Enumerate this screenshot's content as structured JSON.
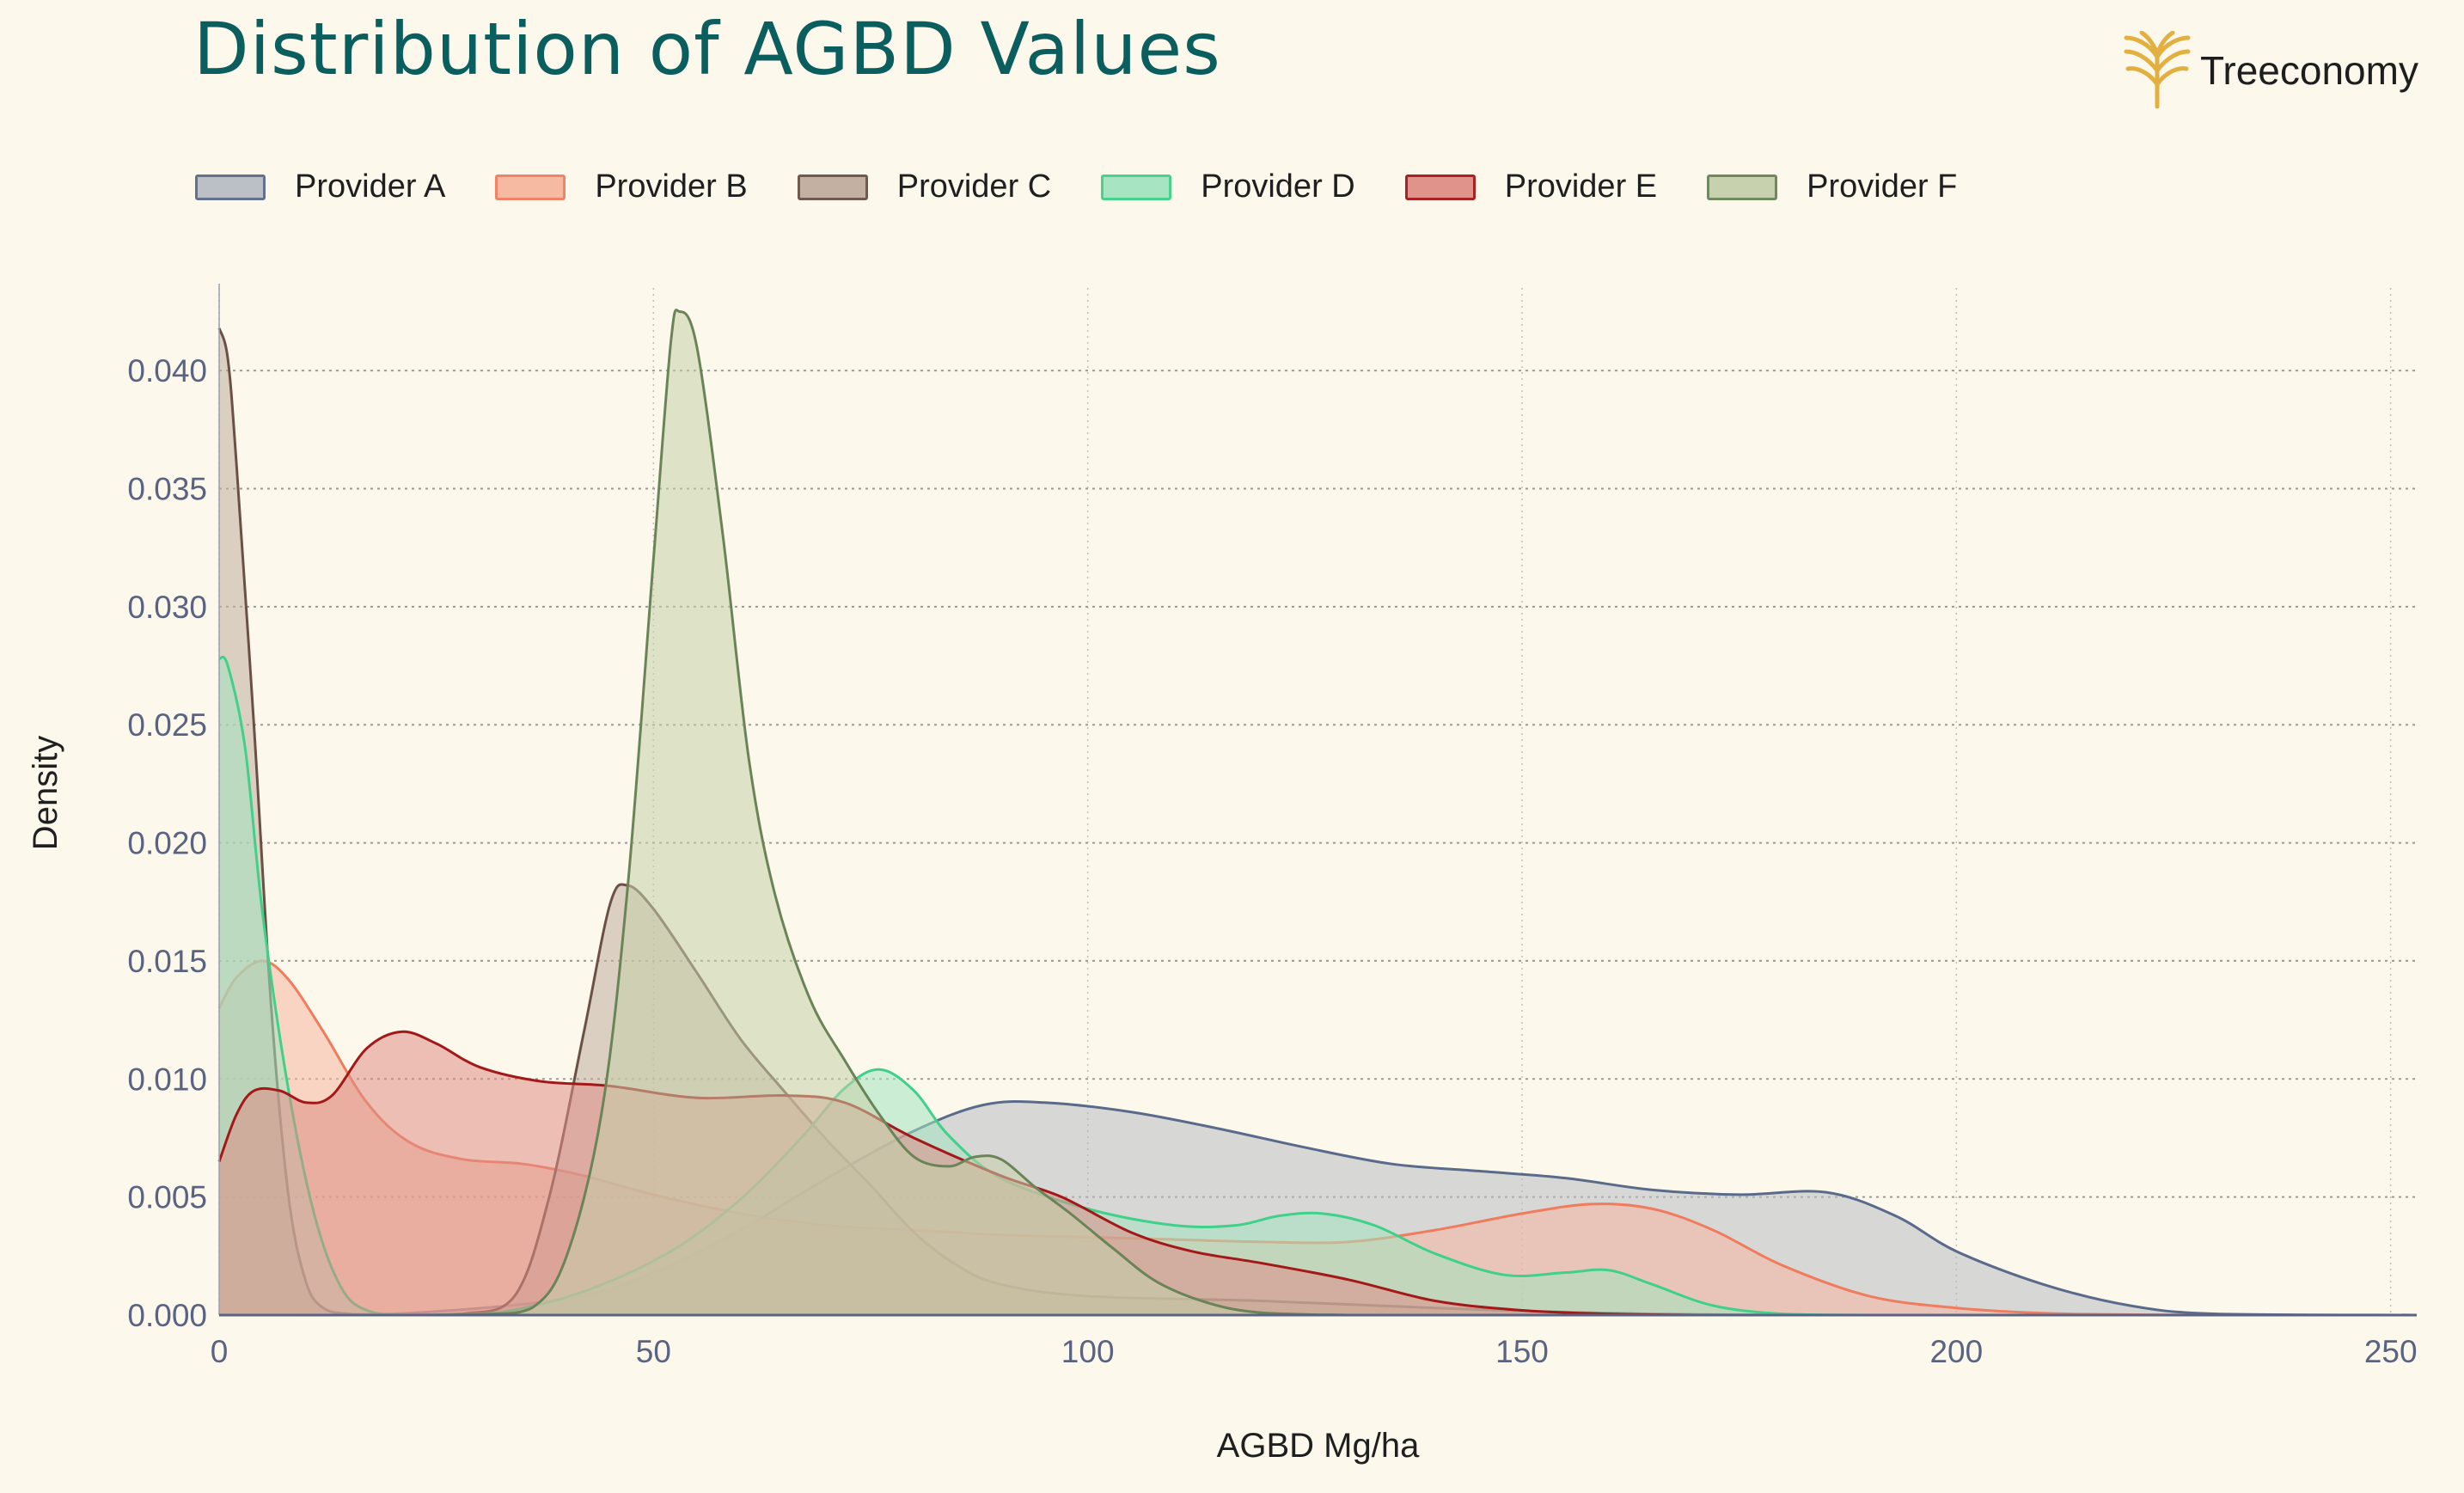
{
  "chart_data": {
    "type": "area",
    "title": "Distribution of AGBD Values",
    "xlabel": "AGBD Mg/ha",
    "ylabel": "Density",
    "xlim": [
      0,
      253
    ],
    "ylim": [
      0,
      0.0435
    ],
    "x_ticks": [
      0,
      50,
      100,
      150,
      200,
      250
    ],
    "y_ticks": [
      0.0,
      0.005,
      0.01,
      0.015,
      0.02,
      0.025,
      0.03,
      0.035,
      0.04
    ],
    "y_tick_labels": [
      "0.000",
      "0.005",
      "0.010",
      "0.015",
      "0.020",
      "0.025",
      "0.030",
      "0.035",
      "0.040"
    ],
    "grid": true,
    "legend_position": "top",
    "series": [
      {
        "name": "Provider A",
        "line_color": "#5a6a8a",
        "fill_color": "#b8bcc4",
        "points": [
          [
            0,
            0
          ],
          [
            20,
            5e-05
          ],
          [
            40,
            0.0007
          ],
          [
            50,
            0.0018
          ],
          [
            60,
            0.0036
          ],
          [
            70,
            0.0058
          ],
          [
            80,
            0.0078
          ],
          [
            88,
            0.0089
          ],
          [
            95,
            0.009
          ],
          [
            105,
            0.0086
          ],
          [
            115,
            0.0079
          ],
          [
            125,
            0.0071
          ],
          [
            135,
            0.0064
          ],
          [
            145,
            0.0061
          ],
          [
            155,
            0.0058
          ],
          [
            165,
            0.0053
          ],
          [
            175,
            0.0051
          ],
          [
            185,
            0.0052
          ],
          [
            193,
            0.0042
          ],
          [
            200,
            0.0027
          ],
          [
            210,
            0.0013
          ],
          [
            220,
            0.0004
          ],
          [
            230,
            5e-05
          ],
          [
            253,
            0
          ]
        ]
      },
      {
        "name": "Provider B",
        "line_color": "#f07c5e",
        "fill_color": "#f6b7a0",
        "points": [
          [
            0,
            0.013
          ],
          [
            2,
            0.0143
          ],
          [
            5,
            0.015
          ],
          [
            8,
            0.0142
          ],
          [
            12,
            0.012
          ],
          [
            17,
            0.009
          ],
          [
            22,
            0.0073
          ],
          [
            28,
            0.0066
          ],
          [
            35,
            0.0064
          ],
          [
            42,
            0.0059
          ],
          [
            50,
            0.0051
          ],
          [
            60,
            0.0043
          ],
          [
            70,
            0.0038
          ],
          [
            80,
            0.0036
          ],
          [
            90,
            0.0034
          ],
          [
            100,
            0.0033
          ],
          [
            110,
            0.0032
          ],
          [
            120,
            0.0031
          ],
          [
            130,
            0.0031
          ],
          [
            140,
            0.0036
          ],
          [
            150,
            0.0043
          ],
          [
            158,
            0.0047
          ],
          [
            165,
            0.0045
          ],
          [
            172,
            0.0036
          ],
          [
            180,
            0.0021
          ],
          [
            190,
            0.0008
          ],
          [
            200,
            0.0003
          ],
          [
            210,
            8e-05
          ],
          [
            220,
            2e-05
          ],
          [
            230,
            0
          ]
        ]
      },
      {
        "name": "Provider C",
        "line_color": "#6b5145",
        "fill_color": "#c0ada0",
        "points": [
          [
            0,
            0.0418
          ],
          [
            1,
            0.0405
          ],
          [
            2,
            0.036
          ],
          [
            4,
            0.025
          ],
          [
            6,
            0.013
          ],
          [
            8,
            0.005
          ],
          [
            10,
            0.0014
          ],
          [
            12,
            0.0003
          ],
          [
            15,
            5e-05
          ],
          [
            20,
            0
          ],
          [
            28,
            5e-05
          ],
          [
            34,
            0.0008
          ],
          [
            38,
            0.005
          ],
          [
            42,
            0.012
          ],
          [
            45,
            0.0174
          ],
          [
            47,
            0.0182
          ],
          [
            50,
            0.0172
          ],
          [
            55,
            0.0145
          ],
          [
            60,
            0.0117
          ],
          [
            65,
            0.0095
          ],
          [
            70,
            0.0074
          ],
          [
            75,
            0.0055
          ],
          [
            80,
            0.0035
          ],
          [
            85,
            0.0021
          ],
          [
            90,
            0.0013
          ],
          [
            100,
            0.0008
          ],
          [
            120,
            0.0006
          ],
          [
            140,
            0.0003
          ],
          [
            160,
            8e-05
          ],
          [
            180,
            0
          ]
        ]
      },
      {
        "name": "Provider D",
        "line_color": "#3fd08a",
        "fill_color": "#a3e3c0",
        "points": [
          [
            0,
            0.0278
          ],
          [
            1,
            0.0275
          ],
          [
            3,
            0.024
          ],
          [
            5,
            0.017
          ],
          [
            8,
            0.0095
          ],
          [
            11,
            0.0042
          ],
          [
            14,
            0.0012
          ],
          [
            17,
            0.0002
          ],
          [
            22,
            0
          ],
          [
            32,
            0.0001
          ],
          [
            42,
            0.001
          ],
          [
            52,
            0.0027
          ],
          [
            60,
            0.0049
          ],
          [
            67,
            0.0075
          ],
          [
            72,
            0.0096
          ],
          [
            76,
            0.0104
          ],
          [
            80,
            0.0095
          ],
          [
            84,
            0.0076
          ],
          [
            90,
            0.0058
          ],
          [
            100,
            0.0045
          ],
          [
            110,
            0.0038
          ],
          [
            117,
            0.0038
          ],
          [
            122,
            0.0042
          ],
          [
            127,
            0.0043
          ],
          [
            133,
            0.0038
          ],
          [
            140,
            0.0026
          ],
          [
            148,
            0.0017
          ],
          [
            155,
            0.0018
          ],
          [
            160,
            0.0019
          ],
          [
            165,
            0.0013
          ],
          [
            172,
            0.0004
          ],
          [
            180,
            5e-05
          ],
          [
            190,
            0
          ]
        ]
      },
      {
        "name": "Provider E",
        "line_color": "#a31818",
        "fill_color": "#de8e86",
        "points": [
          [
            0,
            0.0065
          ],
          [
            2,
            0.0085
          ],
          [
            4,
            0.0095
          ],
          [
            7,
            0.0095
          ],
          [
            10,
            0.009
          ],
          [
            13,
            0.0093
          ],
          [
            17,
            0.0113
          ],
          [
            21,
            0.012
          ],
          [
            25,
            0.0115
          ],
          [
            30,
            0.0105
          ],
          [
            37,
            0.0099
          ],
          [
            45,
            0.0097
          ],
          [
            55,
            0.0092
          ],
          [
            65,
            0.0093
          ],
          [
            72,
            0.009
          ],
          [
            80,
            0.0075
          ],
          [
            90,
            0.0059
          ],
          [
            97,
            0.005
          ],
          [
            105,
            0.0035
          ],
          [
            112,
            0.0027
          ],
          [
            120,
            0.0022
          ],
          [
            130,
            0.0015
          ],
          [
            140,
            0.0006
          ],
          [
            150,
            0.0002
          ],
          [
            160,
            5e-05
          ],
          [
            170,
            0
          ]
        ]
      },
      {
        "name": "Provider F",
        "line_color": "#6a8458",
        "fill_color": "#c5cfaa",
        "points": [
          [
            0,
            0
          ],
          [
            20,
            0
          ],
          [
            30,
            3e-05
          ],
          [
            36,
            0.0003
          ],
          [
            40,
            0.0025
          ],
          [
            44,
            0.0085
          ],
          [
            47,
            0.018
          ],
          [
            50,
            0.032
          ],
          [
            52,
            0.0412
          ],
          [
            53,
            0.0425
          ],
          [
            55,
            0.041
          ],
          [
            58,
            0.033
          ],
          [
            61,
            0.0235
          ],
          [
            64,
            0.0178
          ],
          [
            68,
            0.0134
          ],
          [
            72,
            0.0108
          ],
          [
            76,
            0.0085
          ],
          [
            80,
            0.0067
          ],
          [
            84,
            0.0063
          ],
          [
            87,
            0.0067
          ],
          [
            90,
            0.0066
          ],
          [
            94,
            0.0054
          ],
          [
            98,
            0.0043
          ],
          [
            103,
            0.0028
          ],
          [
            108,
            0.0014
          ],
          [
            114,
            0.0005
          ],
          [
            120,
            0.0001
          ],
          [
            130,
            0
          ]
        ]
      }
    ]
  },
  "logo": {
    "text": "Treeconomy",
    "color": "#e1b040"
  }
}
